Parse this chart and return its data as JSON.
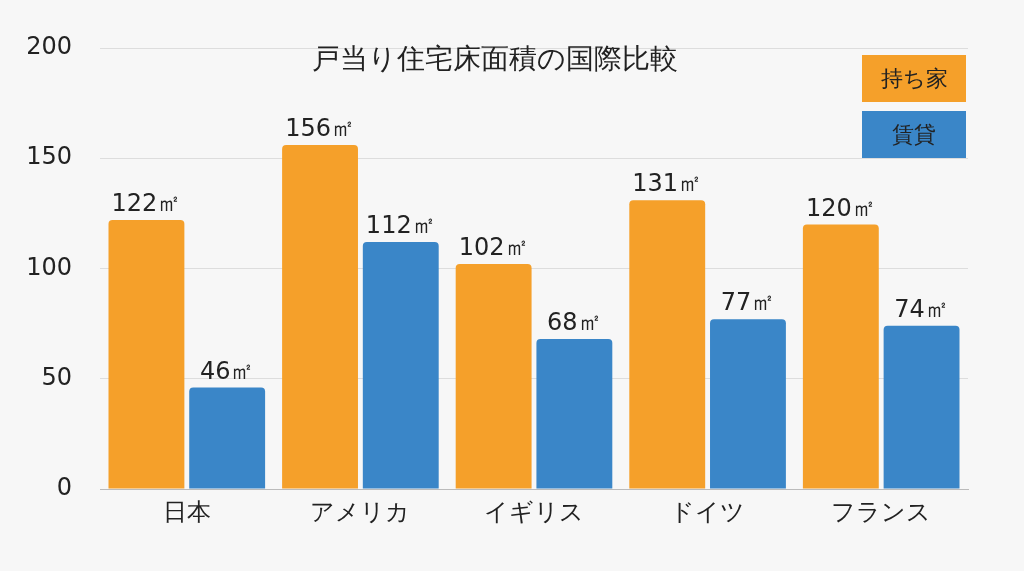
{
  "chart_data": {
    "type": "bar",
    "title": "戸当り住宅床面積の国際比較",
    "categories": [
      "日本",
      "アメリカ",
      "イギリス",
      "ドイツ",
      "フランス"
    ],
    "series": [
      {
        "name": "持ち家",
        "color": "#f5a02a",
        "values": [
          122,
          156,
          102,
          131,
          120
        ],
        "value_labels": [
          "122㎡",
          "156㎡",
          "102㎡",
          "131㎡",
          "120㎡"
        ]
      },
      {
        "name": "賃貸",
        "color": "#3a86c8",
        "values": [
          46,
          112,
          68,
          77,
          74
        ],
        "value_labels": [
          "46㎡",
          "112㎡",
          "68㎡",
          "77㎡",
          "74㎡"
        ]
      }
    ],
    "ylim": [
      0,
      200
    ],
    "yticks": [
      0,
      50,
      100,
      150,
      200
    ],
    "grid": "y",
    "legend": "top right"
  }
}
